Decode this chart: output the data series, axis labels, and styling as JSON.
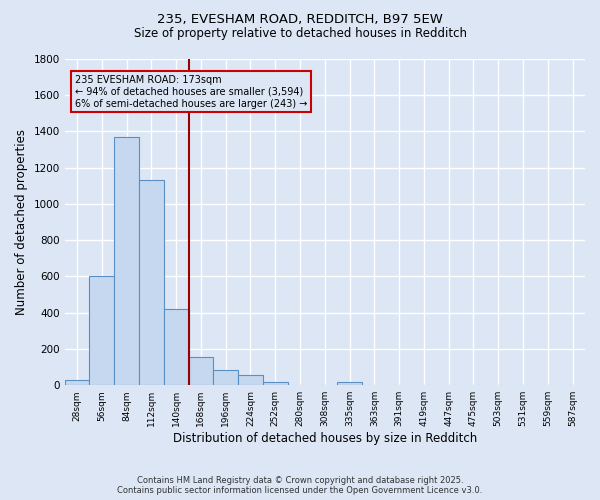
{
  "title_line1": "235, EVESHAM ROAD, REDDITCH, B97 5EW",
  "title_line2": "Size of property relative to detached houses in Redditch",
  "xlabel": "Distribution of detached houses by size in Redditch",
  "ylabel": "Number of detached properties",
  "footer_line1": "Contains HM Land Registry data © Crown copyright and database right 2025.",
  "footer_line2": "Contains public sector information licensed under the Open Government Licence v3.0.",
  "bin_labels": [
    "28sqm",
    "56sqm",
    "84sqm",
    "112sqm",
    "140sqm",
    "168sqm",
    "196sqm",
    "224sqm",
    "252sqm",
    "280sqm",
    "308sqm",
    "335sqm",
    "363sqm",
    "391sqm",
    "419sqm",
    "447sqm",
    "475sqm",
    "503sqm",
    "531sqm",
    "559sqm",
    "587sqm"
  ],
  "bar_values": [
    30,
    600,
    1370,
    1130,
    420,
    155,
    85,
    55,
    20,
    0,
    0,
    20,
    0,
    0,
    0,
    0,
    0,
    0,
    0,
    0,
    0
  ],
  "bar_color": "#c5d8ef",
  "bar_edge_color": "#5a8fc4",
  "background_color": "#dce6f5",
  "grid_color": "#ffffff",
  "vline_x": 4.5,
  "vline_color": "#9b0000",
  "ann_line1": "235 EVESHAM ROAD: 173sqm",
  "ann_line2": "← 94% of detached houses are smaller (3,594)",
  "ann_line3": "6% of semi-detached houses are larger (243) →",
  "annotation_box_color": "#cc0000",
  "ylim": [
    0,
    1800
  ],
  "yticks": [
    0,
    200,
    400,
    600,
    800,
    1000,
    1200,
    1400,
    1600,
    1800
  ]
}
